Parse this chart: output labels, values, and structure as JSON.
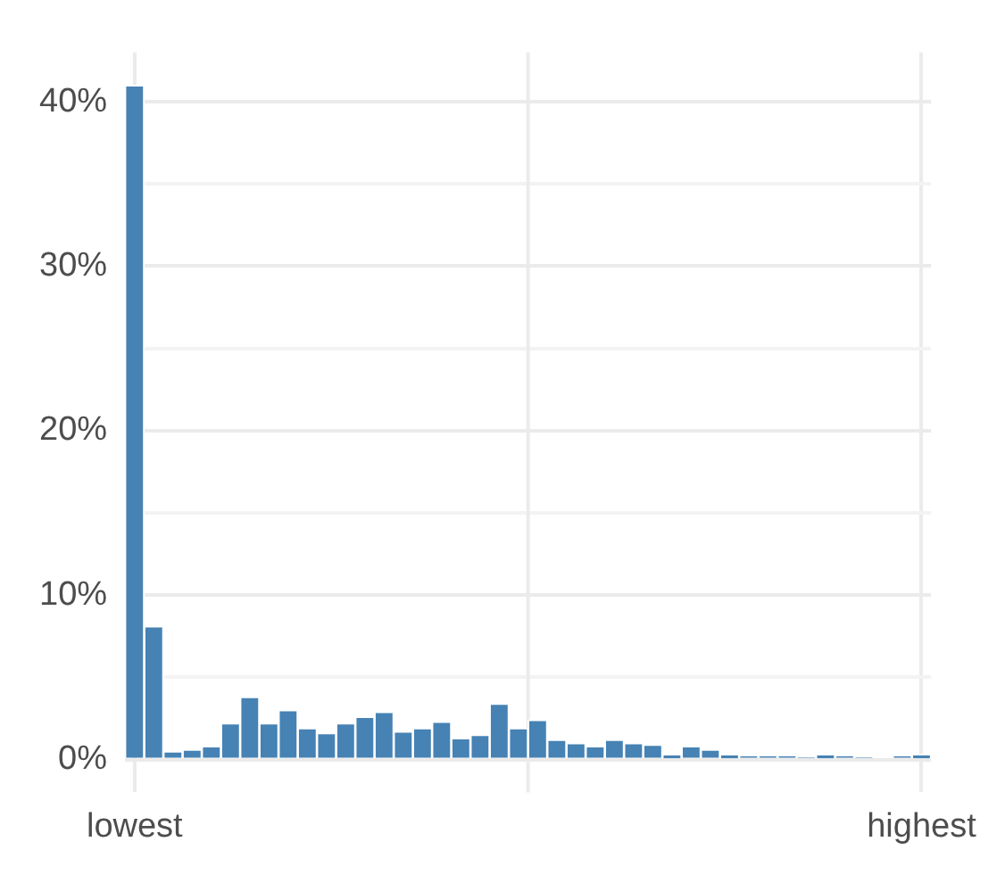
{
  "chart_data": {
    "type": "bar",
    "categories": [
      "lowest",
      null,
      null,
      null,
      null,
      null,
      null,
      null,
      null,
      null,
      null,
      null,
      null,
      null,
      null,
      null,
      null,
      null,
      null,
      null,
      null,
      null,
      null,
      null,
      null,
      null,
      null,
      null,
      null,
      null,
      null,
      null,
      null,
      null,
      null,
      null,
      null,
      null,
      null,
      null,
      null,
      "highest"
    ],
    "values": [
      41,
      8.1,
      0.5,
      0.6,
      0.8,
      2.2,
      3.8,
      2.2,
      3.0,
      1.9,
      1.6,
      2.2,
      2.6,
      2.9,
      1.7,
      1.9,
      2.3,
      1.3,
      1.5,
      3.4,
      1.9,
      2.4,
      1.2,
      1.0,
      0.8,
      1.2,
      1.0,
      0.9,
      0.3,
      0.8,
      0.6,
      0.3,
      0.2,
      0.2,
      0.2,
      0.1,
      0.3,
      0.2,
      0.1,
      0,
      0.2,
      0.3
    ],
    "color": "#4682b4",
    "ylim": [
      -2,
      43
    ],
    "yticks": [
      {
        "value": 0,
        "label": "0%"
      },
      {
        "value": 5,
        "label": null
      },
      {
        "value": 10,
        "label": "10%"
      },
      {
        "value": 15,
        "label": null
      },
      {
        "value": 20,
        "label": "20%"
      },
      {
        "value": 25,
        "label": null
      },
      {
        "value": 30,
        "label": "30%"
      },
      {
        "value": 35,
        "label": null
      },
      {
        "value": 40,
        "label": "40%"
      }
    ],
    "grid": true
  }
}
